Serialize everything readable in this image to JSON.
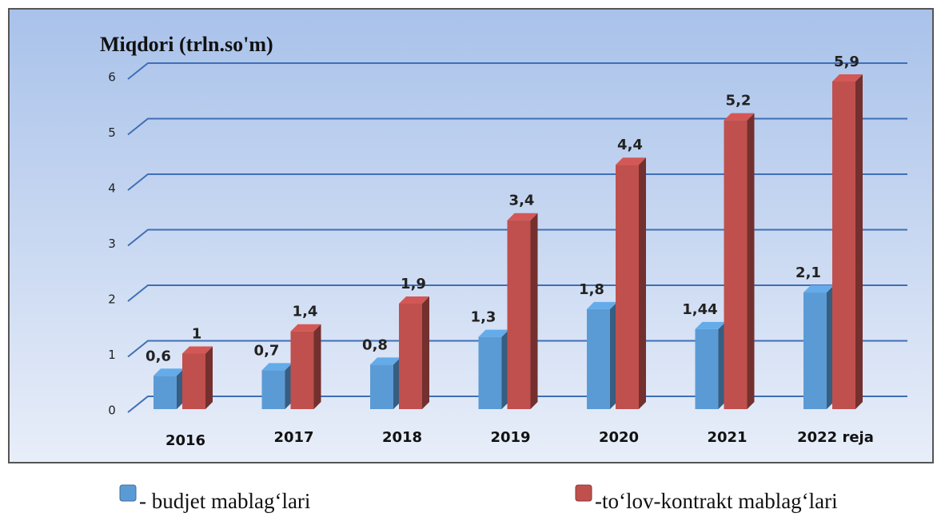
{
  "chart_data": {
    "type": "bar3d",
    "y_axis_title": "Miqdori (trln.so'm)",
    "categories": [
      "2016",
      "2017",
      "2018",
      "2019",
      "2020",
      "2021",
      "2022 reja"
    ],
    "series": [
      {
        "name": "- budjet mablag‘lari",
        "color": "#5b9bd5",
        "values": [
          0.6,
          0.7,
          0.8,
          1.3,
          1.8,
          1.44,
          2.1
        ],
        "value_labels": [
          "0,6",
          "0,7",
          "0,8",
          "1,3",
          "1,8",
          "1,44",
          "2,1"
        ]
      },
      {
        "name": "-to‘lov-kontrakt mablag‘lari",
        "color": "#c0504d",
        "values": [
          1,
          1.4,
          1.9,
          3.4,
          4.4,
          5.2,
          5.9
        ],
        "value_labels": [
          "1",
          "1,4",
          "1,9",
          "3,4",
          "4,4",
          "5,2",
          "5,9"
        ]
      }
    ],
    "ylim": [
      0,
      6
    ],
    "yticks": [
      0,
      1,
      2,
      3,
      4,
      5,
      6
    ],
    "grid": true
  }
}
